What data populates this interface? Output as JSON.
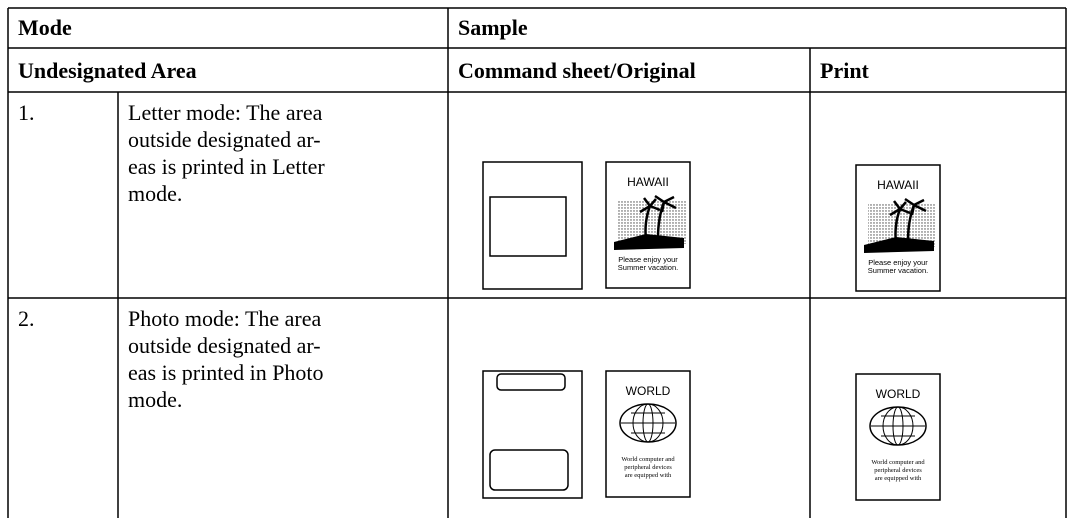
{
  "header": {
    "mode": "Mode",
    "sample": "Sample"
  },
  "subheader": {
    "area": "Undesignated Area",
    "original": "Command sheet/Original",
    "print": "Print"
  },
  "rows": [
    {
      "number": "1.",
      "description": [
        "Letter mode: The area",
        "outside designated ar-",
        "eas is printed in Letter",
        "mode."
      ],
      "illustration": {
        "title": "HAWAII",
        "caption": [
          "Please enjoy your",
          "Summer vacation."
        ]
      }
    },
    {
      "number": "2.",
      "description": [
        "Photo mode: The area",
        "outside designated ar-",
        "eas is printed in Photo",
        "mode."
      ],
      "illustration": {
        "title": "WORLD",
        "caption": [
          "World computer and",
          "peripheral devices",
          "are equipped with"
        ]
      }
    }
  ]
}
